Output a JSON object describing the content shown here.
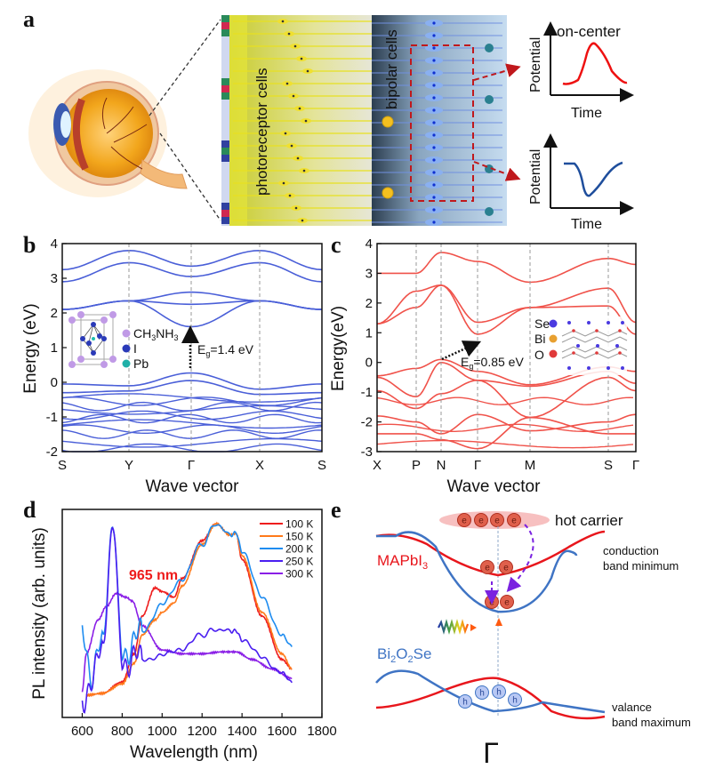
{
  "figure": {
    "panels": [
      "a",
      "b",
      "c",
      "d",
      "e"
    ]
  },
  "panel_a": {
    "letter": "a",
    "photoreceptor_label": "photoreceptor cells",
    "bipolar_label": "bipolar cells",
    "graph_top": {
      "title": "on-center",
      "ylabel": "Potential",
      "xlabel": "Time",
      "color": "#ee1111"
    },
    "graph_bottom": {
      "ylabel": "Potential",
      "xlabel": "Time",
      "color": "#1f4e9c"
    }
  },
  "chart_data": [
    {
      "panel": "b",
      "type": "line",
      "title": "",
      "xlabel": "Wave vector",
      "ylabel": "Energy (eV)",
      "xtick_labels": [
        "S",
        "Y",
        "Γ",
        "X",
        "S"
      ],
      "ylim": [
        -2,
        4
      ],
      "yticks": [
        -2,
        -1,
        0,
        1,
        2,
        3,
        4
      ],
      "color": "#4a5fd8",
      "annotation": "Eg=1.4 eV",
      "bandgap_eV": 1.4,
      "inset_legend": [
        "CH3NH3",
        "I",
        "Pb"
      ],
      "series_at_kpoints": [
        {
          "name": "CB1",
          "values": [
            2.1,
            2.35,
            1.6,
            2.35,
            2.1
          ]
        },
        {
          "name": "CB2",
          "values": [
            2.1,
            2.35,
            2.25,
            2.35,
            2.1
          ]
        },
        {
          "name": "CB3",
          "values": [
            2.1,
            2.35,
            2.6,
            2.35,
            2.1
          ]
        },
        {
          "name": "CB4",
          "values": [
            2.9,
            3.45,
            3.05,
            3.45,
            2.9
          ]
        },
        {
          "name": "CB5",
          "values": [
            3.25,
            3.8,
            3.35,
            3.8,
            3.25
          ]
        },
        {
          "name": "VB1",
          "values": [
            -0.05,
            -0.1,
            0.27,
            -0.2,
            -0.05
          ]
        },
        {
          "name": "VB2",
          "values": [
            -0.3,
            -0.25,
            0.05,
            -0.35,
            -0.3
          ]
        }
      ]
    },
    {
      "panel": "c",
      "type": "line",
      "title": "",
      "xlabel": "Wave vector",
      "ylabel": "Energy(eV)",
      "xtick_labels": [
        "X",
        "P",
        "N",
        "Γ",
        "M",
        "S",
        "Γ"
      ],
      "ylim": [
        -3,
        4
      ],
      "yticks": [
        -3,
        -2,
        -1,
        0,
        1,
        2,
        3,
        4
      ],
      "color": "#f0524a",
      "annotation": "Eg=0.85 eV",
      "bandgap_eV": 0.85,
      "inset_legend": [
        "Se",
        "Bi",
        "O"
      ],
      "series_at_kpoints": [
        {
          "name": "CB1",
          "values": [
            1.3,
            1.85,
            2.6,
            0.95,
            1.85,
            1.9,
            0.95
          ]
        },
        {
          "name": "CB2",
          "values": [
            1.3,
            2.4,
            2.6,
            1.35,
            1.85,
            2.5,
            1.35
          ]
        },
        {
          "name": "CB3",
          "values": [
            3.0,
            3.0,
            3.7,
            3.4,
            2.7,
            3.5,
            3.3
          ]
        },
        {
          "name": "VB1",
          "values": [
            -0.45,
            -0.2,
            0.1,
            -0.3,
            -0.75,
            -0.15,
            -0.3
          ]
        },
        {
          "name": "VB2",
          "values": [
            -0.5,
            -1.15,
            0.0,
            -0.6,
            -0.8,
            -0.3,
            -0.7
          ]
        },
        {
          "name": "VB3",
          "values": [
            -0.95,
            -1.55,
            -1.05,
            -0.6,
            -1.85,
            -0.5,
            -0.95
          ]
        },
        {
          "name": "VB4",
          "values": [
            -1.8,
            -2.0,
            -2.4,
            -1.75,
            -2.3,
            -2.0,
            -1.75
          ]
        },
        {
          "name": "VB5",
          "values": [
            -2.4,
            -2.4,
            -2.6,
            -2.9,
            -1.85,
            -2.4,
            -2.4
          ]
        }
      ]
    },
    {
      "panel": "d",
      "type": "line",
      "title": "",
      "xlabel": "Wavelength (nm)",
      "ylabel": "PL intensity (arb. units)",
      "xlim": [
        500,
        1800
      ],
      "xticks": [
        600,
        800,
        1000,
        1200,
        1400,
        1600,
        1800
      ],
      "ylim": [
        0,
        1
      ],
      "legend_position": "top-right",
      "annotation": "965 nm",
      "series": [
        {
          "name": "100 K",
          "color": "#ee1c1c",
          "x": [
            620,
            700,
            800,
            860,
            900,
            965,
            1000,
            1060,
            1100,
            1200,
            1270,
            1340,
            1370,
            1400,
            1500,
            1600,
            1650
          ],
          "y": [
            0.08,
            0.09,
            0.15,
            0.3,
            0.5,
            0.65,
            0.63,
            0.6,
            0.7,
            0.9,
            0.99,
            0.93,
            0.94,
            0.8,
            0.5,
            0.27,
            0.22
          ]
        },
        {
          "name": "150 K",
          "color": "#ff7a1a",
          "x": [
            620,
            700,
            800,
            860,
            900,
            965,
            1000,
            1060,
            1100,
            1200,
            1270,
            1340,
            1370,
            1400,
            1500,
            1600,
            1650
          ],
          "y": [
            0.08,
            0.09,
            0.14,
            0.25,
            0.4,
            0.48,
            0.52,
            0.57,
            0.66,
            0.88,
            0.99,
            0.93,
            0.94,
            0.82,
            0.52,
            0.3,
            0.22
          ]
        },
        {
          "name": "200 K",
          "color": "#1e8cf0",
          "x": [
            600,
            650,
            700,
            760,
            800,
            850,
            900,
            1000,
            1100,
            1200,
            1270,
            1340,
            1370,
            1400,
            1500,
            1600,
            1650
          ],
          "y": [
            0.4,
            0.2,
            0.35,
            0.98,
            0.3,
            0.35,
            0.42,
            0.56,
            0.7,
            0.88,
            0.99,
            0.93,
            0.95,
            0.85,
            0.6,
            0.4,
            0.33
          ]
        },
        {
          "name": "250 K",
          "color": "#4a1ef0",
          "x": [
            600,
            650,
            700,
            760,
            800,
            850,
            900,
            1000,
            1100,
            1200,
            1270,
            1340,
            1370,
            1400,
            1500,
            1600,
            1650
          ],
          "y": [
            0.0,
            0.2,
            0.3,
            0.98,
            0.25,
            0.28,
            0.27,
            0.29,
            0.33,
            0.4,
            0.43,
            0.42,
            0.43,
            0.38,
            0.28,
            0.2,
            0.14
          ]
        },
        {
          "name": "300 K",
          "color": "#8a1ee6",
          "x": [
            600,
            620,
            680,
            720,
            770,
            820,
            850,
            900,
            1000,
            1100,
            1200,
            1300,
            1370,
            1450,
            1550,
            1650
          ],
          "y": [
            0.1,
            0.3,
            0.48,
            0.55,
            0.62,
            0.6,
            0.58,
            0.45,
            0.32,
            0.3,
            0.3,
            0.31,
            0.31,
            0.27,
            0.22,
            0.17
          ]
        }
      ]
    }
  ],
  "panel_e": {
    "letter": "e",
    "hot_carrier_label": "hot carrier",
    "cbm_label_1": "conduction",
    "cbm_label_2": "band minimum",
    "vbm_label_1": "valance",
    "vbm_label_2": "band maximum",
    "mapbi_label": "MAPbI",
    "mapbi_sub": "3",
    "bi2o2se_label": "Bi2O2Se",
    "gamma_label": "Γ",
    "electron_symbol": "e",
    "hole_symbol": "h",
    "mapbi_color": "#e8161c",
    "bi2o2se_color": "#3f74c4"
  },
  "labels": {
    "b": "b",
    "c": "c",
    "d": "d",
    "eg_b_main": "E",
    "eg_b_sub": "g",
    "eg_b_rest": "=1.4 eV",
    "eg_c_rest": "=0.85 eV",
    "ch3nh3": "CH3NH3",
    "i": "I",
    "pb": "Pb",
    "se": "Se",
    "bi": "Bi",
    "o": "O",
    "wave_vector": "Wave vector",
    "energy_b": "Energy (eV)",
    "energy_c": "Energy(eV)",
    "pl_ylabel": "PL intensity (arb. units)",
    "wavelength": "Wavelength (nm)",
    "peak965": "965 nm"
  }
}
